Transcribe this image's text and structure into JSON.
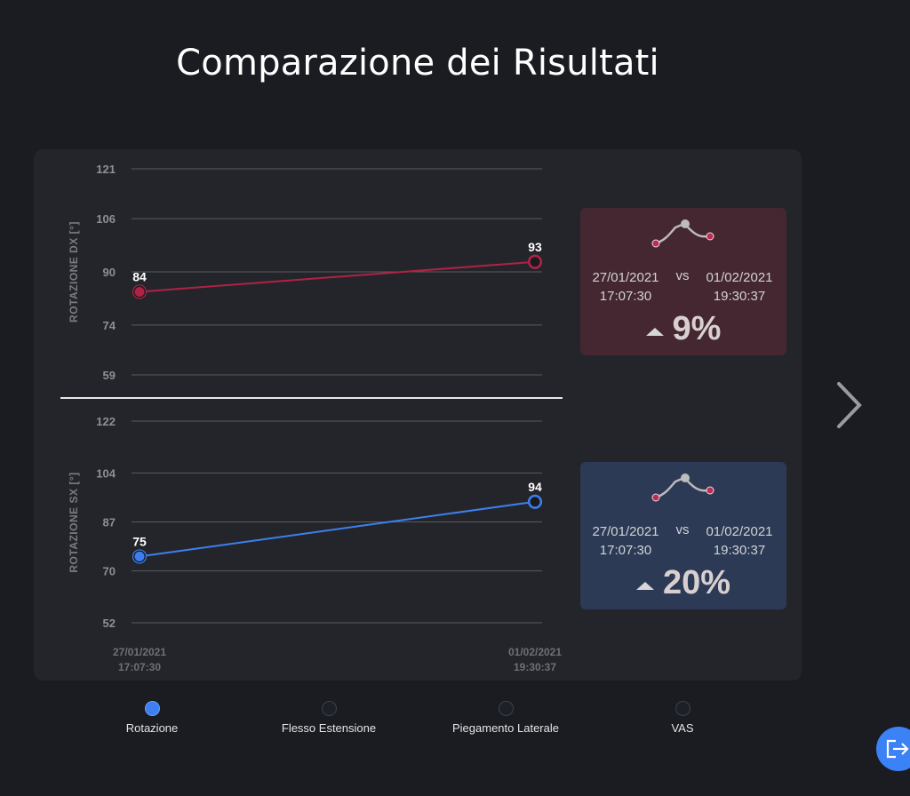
{
  "page": {
    "title": "Comparazione dei Risultati"
  },
  "chart_data": [
    {
      "type": "line",
      "ylabel": "ROTAZIONE DX [°]",
      "y_ticks": [
        121,
        106,
        90,
        74,
        59
      ],
      "ylim": [
        59,
        121
      ],
      "x": [
        "27/01/2021 17:07:30",
        "01/02/2021 19:30:37"
      ],
      "series": [
        {
          "values": [
            84,
            93
          ],
          "color": "#b02244"
        }
      ],
      "data_labels": [
        "84",
        "93"
      ],
      "grid": true
    },
    {
      "type": "line",
      "ylabel": "ROTAZIONE SX [°]",
      "y_ticks": [
        122,
        104,
        87,
        70,
        52
      ],
      "ylim": [
        52,
        122
      ],
      "x": [
        "27/01/2021 17:07:30",
        "01/02/2021 19:30:37"
      ],
      "x_tick_labels": [
        {
          "date": "27/01/2021",
          "time": "17:07:30"
        },
        {
          "date": "01/02/2021",
          "time": "19:30:37"
        }
      ],
      "series": [
        {
          "values": [
            75,
            94
          ],
          "color": "#3d7ff0"
        }
      ],
      "data_labels": [
        "75",
        "94"
      ],
      "grid": true
    }
  ],
  "comparisons": [
    {
      "from_date": "27/01/2021",
      "from_time": "17:07:30",
      "vs": "vs",
      "to_date": "01/02/2021",
      "to_time": "19:30:37",
      "change": "9%",
      "trend": "up",
      "bg_color": "#442730"
    },
    {
      "from_date": "27/01/2021",
      "from_time": "17:07:30",
      "vs": "vs",
      "to_date": "01/02/2021",
      "to_time": "19:30:37",
      "change": "20%",
      "trend": "up",
      "bg_color": "#2c3a55"
    }
  ],
  "tabs": [
    {
      "label": "Rotazione",
      "active": true
    },
    {
      "label": "Flesso Estensione",
      "active": false
    },
    {
      "label": "Piegamento Laterale",
      "active": false
    },
    {
      "label": "VAS",
      "active": false
    }
  ],
  "icons": {
    "next": "chevron-right-icon",
    "exit": "exit-icon"
  }
}
